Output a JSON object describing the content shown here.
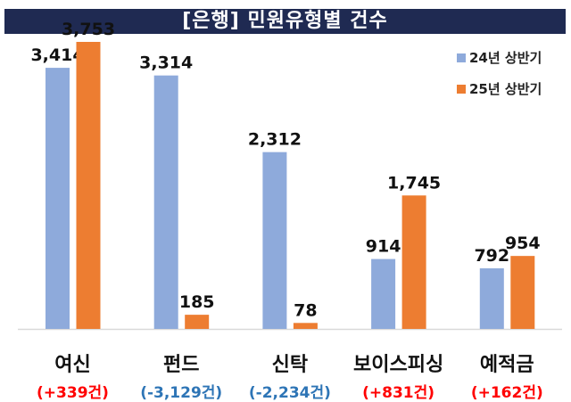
{
  "chart_data": {
    "type": "bar",
    "title": "[은행] 민원유형별 건수",
    "categories": [
      "여신",
      "펀드",
      "신탁",
      "보이스피싱",
      "예적금"
    ],
    "category_changes": [
      "(+339건)",
      "(-3,129건)",
      "(-2,234건)",
      "(+831건)",
      "(+162건)"
    ],
    "change_colors": [
      "#ff0000",
      "#2e75b6",
      "#2e75b6",
      "#ff0000",
      "#ff0000"
    ],
    "series": [
      {
        "name": "24년 상반기",
        "values": [
          3414,
          3314,
          2312,
          914,
          792
        ],
        "labels": [
          "3,414",
          "3,314",
          "2,312",
          "914",
          "792"
        ],
        "color": "#8eaadb"
      },
      {
        "name": "25년 상반기",
        "values": [
          3753,
          185,
          78,
          1745,
          954
        ],
        "labels": [
          "3,753",
          "185",
          "78",
          "1,745",
          "954"
        ],
        "color": "#ed7d31"
      }
    ],
    "ylim": [
      0,
      3753
    ],
    "grid": false,
    "legend": "top-right"
  }
}
